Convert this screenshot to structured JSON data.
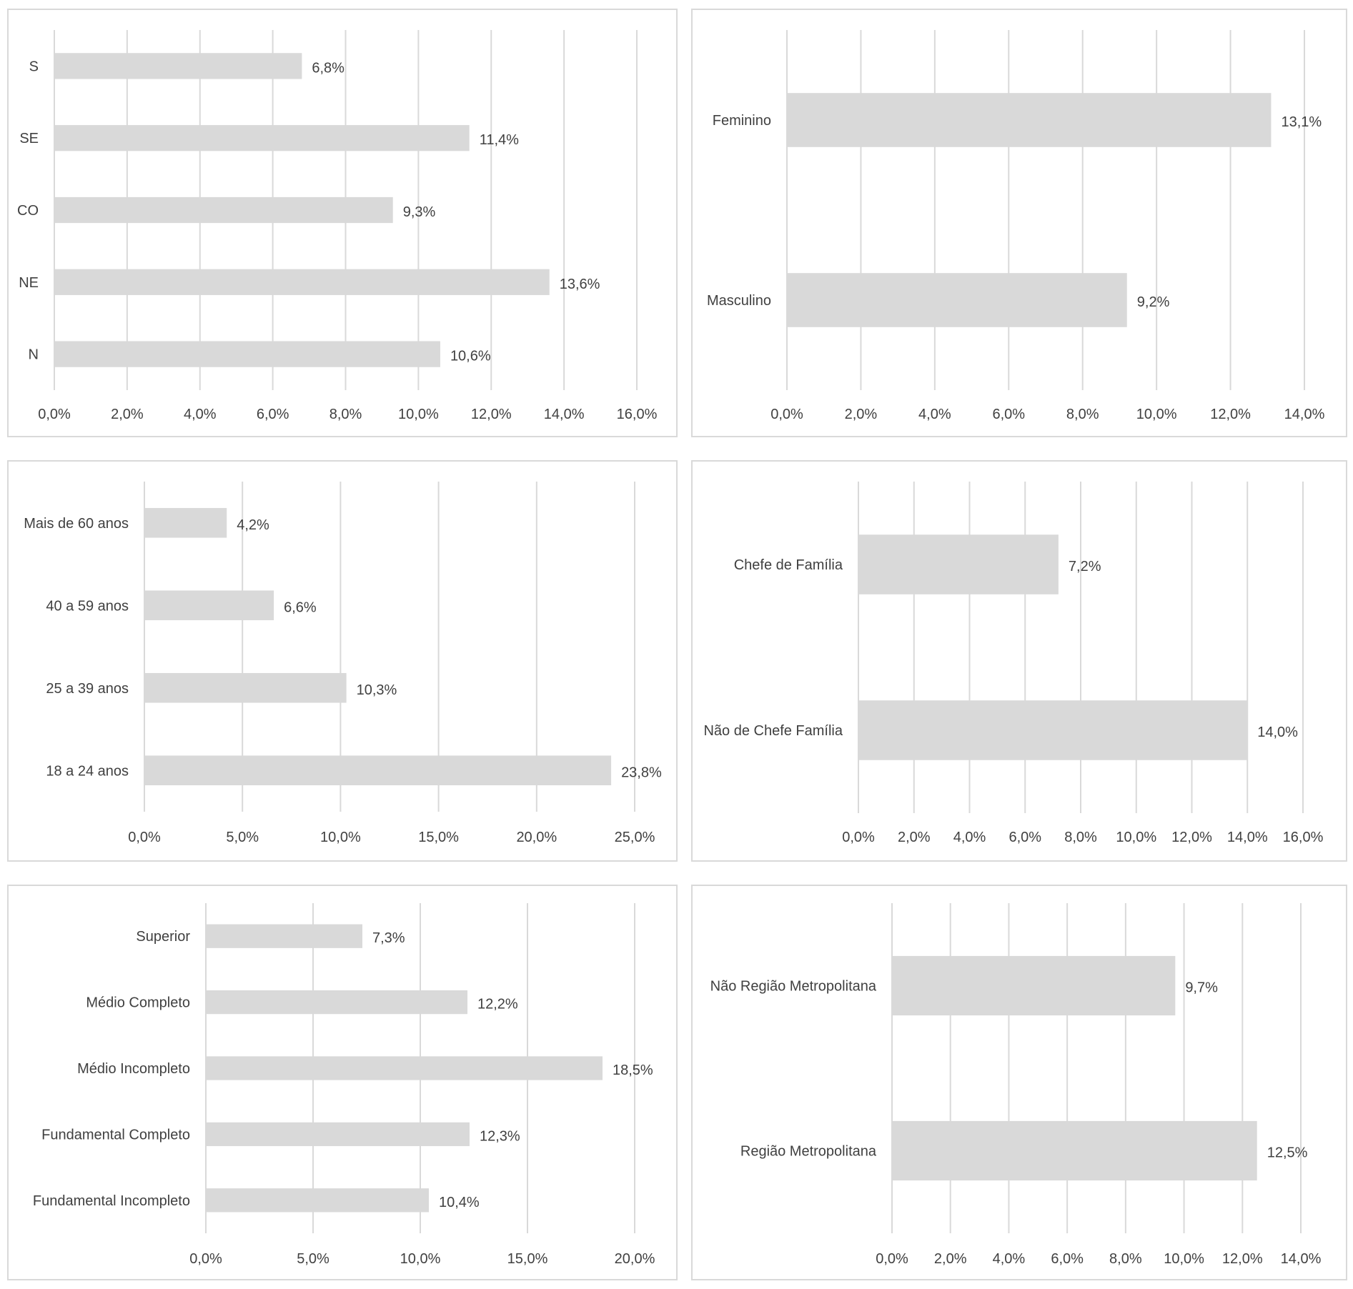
{
  "chart_data": [
    {
      "type": "bar",
      "orientation": "horizontal",
      "categories": [
        "S",
        "SE",
        "CO",
        "NE",
        "N"
      ],
      "values": [
        6.8,
        11.4,
        9.3,
        13.6,
        10.6
      ],
      "value_labels": [
        "6,8%",
        "11,4%",
        "9,3%",
        "13,6%",
        "10,6%"
      ],
      "xlim": [
        0,
        16
      ],
      "ticks": [
        "0,0%",
        "2,0%",
        "4,0%",
        "6,0%",
        "8,0%",
        "10,0%",
        "12,0%",
        "14,0%",
        "16,0%"
      ],
      "grid": true,
      "bar_color": "#d9d9d9"
    },
    {
      "type": "bar",
      "orientation": "horizontal",
      "categories": [
        "Feminino",
        "Masculino"
      ],
      "values": [
        13.1,
        9.2
      ],
      "value_labels": [
        "13,1%",
        "9,2%"
      ],
      "xlim": [
        0,
        14
      ],
      "ticks": [
        "0,0%",
        "2,0%",
        "4,0%",
        "6,0%",
        "8,0%",
        "10,0%",
        "12,0%",
        "14,0%"
      ],
      "grid": true,
      "bar_color": "#d9d9d9"
    },
    {
      "type": "bar",
      "orientation": "horizontal",
      "categories": [
        "Mais de 60 anos",
        "40 a 59 anos",
        "25 a 39 anos",
        "18 a 24 anos"
      ],
      "values": [
        4.2,
        6.6,
        10.3,
        23.8
      ],
      "value_labels": [
        "4,2%",
        "6,6%",
        "10,3%",
        "23,8%"
      ],
      "xlim": [
        0,
        25
      ],
      "ticks": [
        "0,0%",
        "5,0%",
        "10,0%",
        "15,0%",
        "20,0%",
        "25,0%"
      ],
      "grid": true,
      "bar_color": "#d9d9d9"
    },
    {
      "type": "bar",
      "orientation": "horizontal",
      "categories": [
        "Chefe de Família",
        "Não de Chefe Família"
      ],
      "values": [
        7.2,
        14.0
      ],
      "value_labels": [
        "7,2%",
        "14,0%"
      ],
      "xlim": [
        0,
        16
      ],
      "ticks": [
        "0,0%",
        "2,0%",
        "4,0%",
        "6,0%",
        "8,0%",
        "10,0%",
        "12,0%",
        "14,0%",
        "16,0%"
      ],
      "grid": true,
      "bar_color": "#d9d9d9"
    },
    {
      "type": "bar",
      "orientation": "horizontal",
      "categories": [
        "Superior",
        "Médio Completo",
        "Médio Incompleto",
        "Fundamental Completo",
        "Fundamental Incompleto"
      ],
      "values": [
        7.3,
        12.2,
        18.5,
        12.3,
        10.4
      ],
      "value_labels": [
        "7,3%",
        "12,2%",
        "18,5%",
        "12,3%",
        "10,4%"
      ],
      "xlim": [
        0,
        20
      ],
      "ticks": [
        "0,0%",
        "5,0%",
        "10,0%",
        "15,0%",
        "20,0%"
      ],
      "grid": true,
      "bar_color": "#d9d9d9"
    },
    {
      "type": "bar",
      "orientation": "horizontal",
      "categories": [
        "Não Região Metropolitana",
        "Região Metropolitana"
      ],
      "values": [
        9.7,
        12.5
      ],
      "value_labels": [
        "9,7%",
        "12,5%"
      ],
      "xlim": [
        0,
        14
      ],
      "ticks": [
        "0,0%",
        "2,0%",
        "4,0%",
        "6,0%",
        "8,0%",
        "10,0%",
        "12,0%",
        "14,0%"
      ],
      "grid": true,
      "bar_color": "#d9d9d9"
    }
  ]
}
